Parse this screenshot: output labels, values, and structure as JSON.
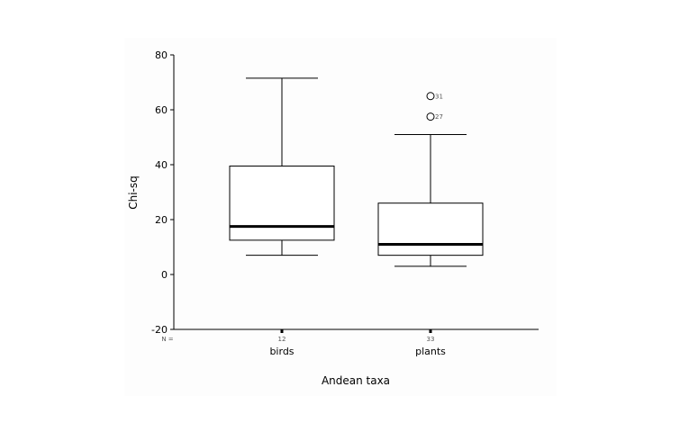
{
  "chart_data": {
    "type": "boxplot",
    "title": "",
    "xlabel": "Andean taxa",
    "ylabel": "Chi-sq",
    "ylim": [
      -20,
      80
    ],
    "yticks": [
      -20,
      0,
      20,
      40,
      60,
      80
    ],
    "n_prefix": "N =",
    "grid": false,
    "legend": "none",
    "categories": [
      "birds",
      "plants"
    ],
    "n": [
      "12",
      "33"
    ],
    "boxes": [
      {
        "category": "birds",
        "whisker_low": 7,
        "q1": 12.5,
        "median": 17.5,
        "q3": 39.5,
        "whisker_high": 71.5,
        "outliers": []
      },
      {
        "category": "plants",
        "whisker_low": 3,
        "q1": 7,
        "median": 11,
        "q3": 26,
        "whisker_high": 51,
        "outliers": [
          {
            "value": 65,
            "label": "31"
          },
          {
            "value": 57.5,
            "label": "27"
          }
        ]
      }
    ]
  }
}
